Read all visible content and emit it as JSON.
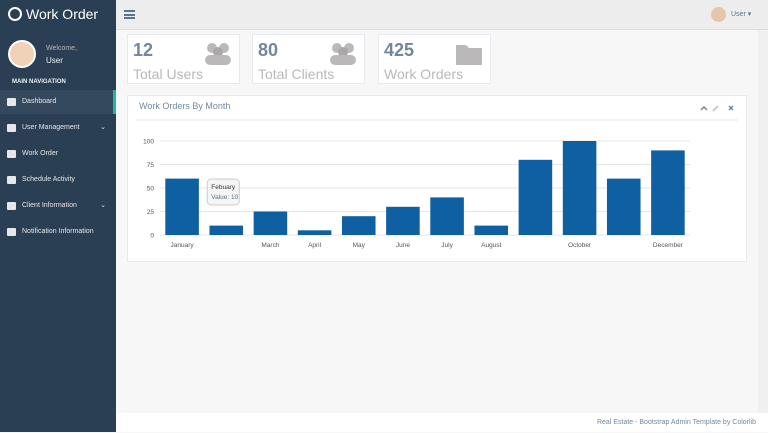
{
  "app": {
    "title": "Work Order"
  },
  "profile": {
    "welcome": "Welcome,",
    "name": "User"
  },
  "nav": {
    "heading": "MAIN NAVIGATION",
    "items": [
      {
        "label": "Dashboard"
      },
      {
        "label": "User Management"
      },
      {
        "label": "Work Order"
      },
      {
        "label": "Schedule Activity"
      },
      {
        "label": "Client Information"
      },
      {
        "label": "Notification Information"
      }
    ]
  },
  "topbar": {
    "user": "User"
  },
  "stats": [
    {
      "value": "12",
      "label": "Total Users"
    },
    {
      "value": "80",
      "label": "Total Clients"
    },
    {
      "value": "425",
      "label": "Work Orders"
    }
  ],
  "chart_data": {
    "type": "bar",
    "title": "Work Orders By Month",
    "categories": [
      "January",
      null,
      "March",
      "April",
      "May",
      "June",
      "July",
      "August",
      null,
      "October",
      null,
      "December"
    ],
    "values": [
      60,
      10,
      25,
      5,
      20,
      30,
      40,
      10,
      80,
      100,
      60,
      90
    ],
    "color": "#0f5fa3",
    "ylim": [
      0,
      100
    ],
    "yticks": [
      0,
      25,
      50,
      75,
      100
    ],
    "grid": true,
    "tooltip": {
      "title": "Febuary",
      "label": "Value: 10"
    }
  },
  "footer": {
    "text": "Real Estate - Bootstrap Admin Template by Colorlib"
  }
}
